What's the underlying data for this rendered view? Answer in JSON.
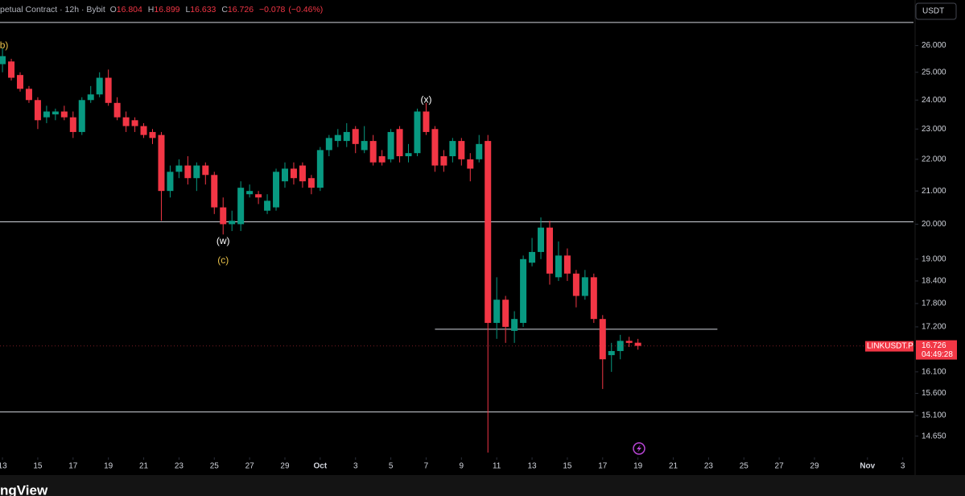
{
  "header": {
    "source": "petual Contract · 12h · Bybit",
    "o": "O",
    "h": "H",
    "l": "L",
    "c": "C",
    "change": "−0.078",
    "change_pct": "(−0.46%)"
  },
  "currency": "USDT",
  "symbol": "LINKUSDT.P",
  "countdown": "04:49:28",
  "footer": "ngView",
  "chart_data": {
    "type": "candlestick",
    "log_scale": true,
    "up_color": "#089981",
    "down_color": "#f23645",
    "x": [
      13,
      13.5,
      14,
      14.5,
      15,
      15.5,
      16,
      16.5,
      17,
      17.5,
      18,
      18.5,
      19,
      19.5,
      20,
      20.5,
      21,
      21.5,
      22,
      22.5,
      23,
      23.5,
      24,
      24.5,
      25,
      25.5,
      26,
      26.5,
      27,
      27.5,
      28,
      28.5,
      29,
      29.5,
      30,
      30.5,
      31,
      31.5,
      32,
      32.5,
      33,
      33.5,
      34,
      34.5,
      35,
      35.5,
      36,
      36.5,
      37,
      37.5,
      38,
      38.5,
      39,
      39.5,
      40,
      40.5,
      41,
      41.5,
      42,
      42.5,
      43,
      43.5,
      44,
      44.5,
      45,
      45.5,
      46,
      46.5,
      47,
      47.5,
      48,
      48.5,
      49
    ],
    "open": [
      25.3,
      25.4,
      24.9,
      24.4,
      24.0,
      23.4,
      23.5,
      23.6,
      23.4,
      22.9,
      24.0,
      24.2,
      24.8,
      23.9,
      23.4,
      23.3,
      23.1,
      22.9,
      22.8,
      21.0,
      21.6,
      21.8,
      21.4,
      21.8,
      21.5,
      20.5,
      20.0,
      20.0,
      20.9,
      20.9,
      20.4,
      20.5,
      21.3,
      21.7,
      21.8,
      21.4,
      21.1,
      22.3,
      22.6,
      22.6,
      23.0,
      22.3,
      22.6,
      22.1,
      22.0,
      23.0,
      22.1,
      22.2,
      23.6,
      23.0,
      22.1,
      22.1,
      22.6,
      22.0,
      22.0,
      22.6,
      17.3,
      17.9,
      17.1,
      17.3,
      18.9,
      19.2,
      19.9,
      18.5,
      19.1,
      18.6,
      18.0,
      18.5,
      17.4,
      16.5,
      16.6,
      16.85,
      16.804
    ],
    "high": [
      25.9,
      25.5,
      25.0,
      24.5,
      24.1,
      23.8,
      23.7,
      23.8,
      23.6,
      24.1,
      24.5,
      25.0,
      25.1,
      24.1,
      23.6,
      23.4,
      23.2,
      23.0,
      22.9,
      21.8,
      22.0,
      22.1,
      21.9,
      21.9,
      21.6,
      20.8,
      20.4,
      21.3,
      21.2,
      21.0,
      20.9,
      21.7,
      21.9,
      21.9,
      21.9,
      21.5,
      22.4,
      22.8,
      23.0,
      23.2,
      23.1,
      23.1,
      22.8,
      22.3,
      23.0,
      23.1,
      22.5,
      23.7,
      23.9,
      23.1,
      22.3,
      22.7,
      22.7,
      22.2,
      22.8,
      22.8,
      18.5,
      18.0,
      17.6,
      19.1,
      19.6,
      20.2,
      20.1,
      19.5,
      19.3,
      18.7,
      18.7,
      18.6,
      17.5,
      16.8,
      17.0,
      16.95,
      16.899
    ],
    "low": [
      25.0,
      24.7,
      24.3,
      23.9,
      23.0,
      23.2,
      23.3,
      23.3,
      22.7,
      22.8,
      23.9,
      24.1,
      23.8,
      23.3,
      22.9,
      22.9,
      22.7,
      22.5,
      20.1,
      20.8,
      21.4,
      21.2,
      21.0,
      21.2,
      20.3,
      19.7,
      19.8,
      19.8,
      20.8,
      20.6,
      20.3,
      20.4,
      21.1,
      21.2,
      21.1,
      20.9,
      21.0,
      22.1,
      22.4,
      22.4,
      22.2,
      22.2,
      21.8,
      21.8,
      21.9,
      21.9,
      21.9,
      22.1,
      22.8,
      21.6,
      21.6,
      21.9,
      21.8,
      21.3,
      21.9,
      14.3,
      16.9,
      16.8,
      16.8,
      17.2,
      18.8,
      19.0,
      18.3,
      18.4,
      18.4,
      17.7,
      17.9,
      17.3,
      15.7,
      16.1,
      16.4,
      16.7,
      16.633
    ],
    "close": [
      25.6,
      24.8,
      24.4,
      24.0,
      23.3,
      23.6,
      23.6,
      23.4,
      22.9,
      24.0,
      24.2,
      24.8,
      23.9,
      23.4,
      23.1,
      23.1,
      22.8,
      22.7,
      21.0,
      21.6,
      21.8,
      21.4,
      21.8,
      21.5,
      20.5,
      20.0,
      20.1,
      21.1,
      21.0,
      20.8,
      20.7,
      21.6,
      21.7,
      21.4,
      21.3,
      21.1,
      22.3,
      22.7,
      22.8,
      22.9,
      22.5,
      22.6,
      21.9,
      21.9,
      22.9,
      22.1,
      22.2,
      23.6,
      22.9,
      21.8,
      21.8,
      22.6,
      22.0,
      21.7,
      22.5,
      17.3,
      17.9,
      17.2,
      17.4,
      19.0,
      19.2,
      19.9,
      18.6,
      19.1,
      18.6,
      18.0,
      18.5,
      17.4,
      16.4,
      16.6,
      16.85,
      16.8,
      16.726
    ],
    "xlim": [
      12.86,
      64.7
    ],
    "ylim": [
      14.2,
      27.8
    ],
    "xticks": [
      13,
      15,
      17,
      19,
      21,
      23,
      25,
      27,
      29,
      {
        "value": 31,
        "label": "Oct"
      },
      {
        "value": 33,
        "label": "3"
      },
      {
        "value": 35,
        "label": "5"
      },
      {
        "value": 37,
        "label": "7"
      },
      {
        "value": 39,
        "label": "9"
      },
      {
        "value": 41,
        "label": "11"
      },
      {
        "value": 43,
        "label": "13"
      },
      {
        "value": 45,
        "label": "15"
      },
      {
        "value": 47,
        "label": "17"
      },
      {
        "value": 49,
        "label": "19"
      },
      {
        "value": 51,
        "label": "21"
      },
      {
        "value": 53,
        "label": "23"
      },
      {
        "value": 55,
        "label": "25"
      },
      {
        "value": 57,
        "label": "27"
      },
      {
        "value": 59,
        "label": "29"
      },
      {
        "value": 62,
        "label": "Nov"
      },
      {
        "value": 64,
        "label": "3"
      }
    ],
    "yticks": [
      {
        "value": 26,
        "label": "26.000"
      },
      {
        "value": 25,
        "label": "25.000"
      },
      {
        "value": 24,
        "label": "24.000"
      },
      {
        "value": 23,
        "label": "23.000"
      },
      {
        "value": 22,
        "label": "22.000"
      },
      {
        "value": 21,
        "label": "21.000"
      },
      {
        "value": 20,
        "label": "20.000"
      },
      {
        "value": 19,
        "label": "19.000"
      },
      {
        "value": 18.4,
        "label": "18.400"
      },
      {
        "value": 17.8,
        "label": "17.800"
      },
      {
        "value": 17.2,
        "label": "17.200"
      },
      {
        "value": 16.1,
        "label": "16.100"
      },
      {
        "value": 15.6,
        "label": "15.600"
      },
      {
        "value": 15.1,
        "label": "15.100"
      },
      {
        "value": 14.65,
        "label": "14.650"
      }
    ],
    "lines": [
      {
        "price": 26.9
      },
      {
        "price": 20.07
      },
      {
        "price": 17.14,
        "from": 37.5,
        "to": 53.5
      },
      {
        "price": 15.18
      }
    ],
    "annotations": [
      {
        "text": "(b)",
        "x": 13,
        "price": 26.0,
        "color": "#e8c14a"
      },
      {
        "text": "(x)",
        "x": 37,
        "price": 24.0,
        "color": "#ffffff"
      },
      {
        "text": "(w)",
        "x": 25.5,
        "price": 19.5,
        "color": "#ffffff"
      },
      {
        "text": "(c)",
        "x": 25.5,
        "price": 18.95,
        "color": "#e8c14a"
      }
    ]
  }
}
